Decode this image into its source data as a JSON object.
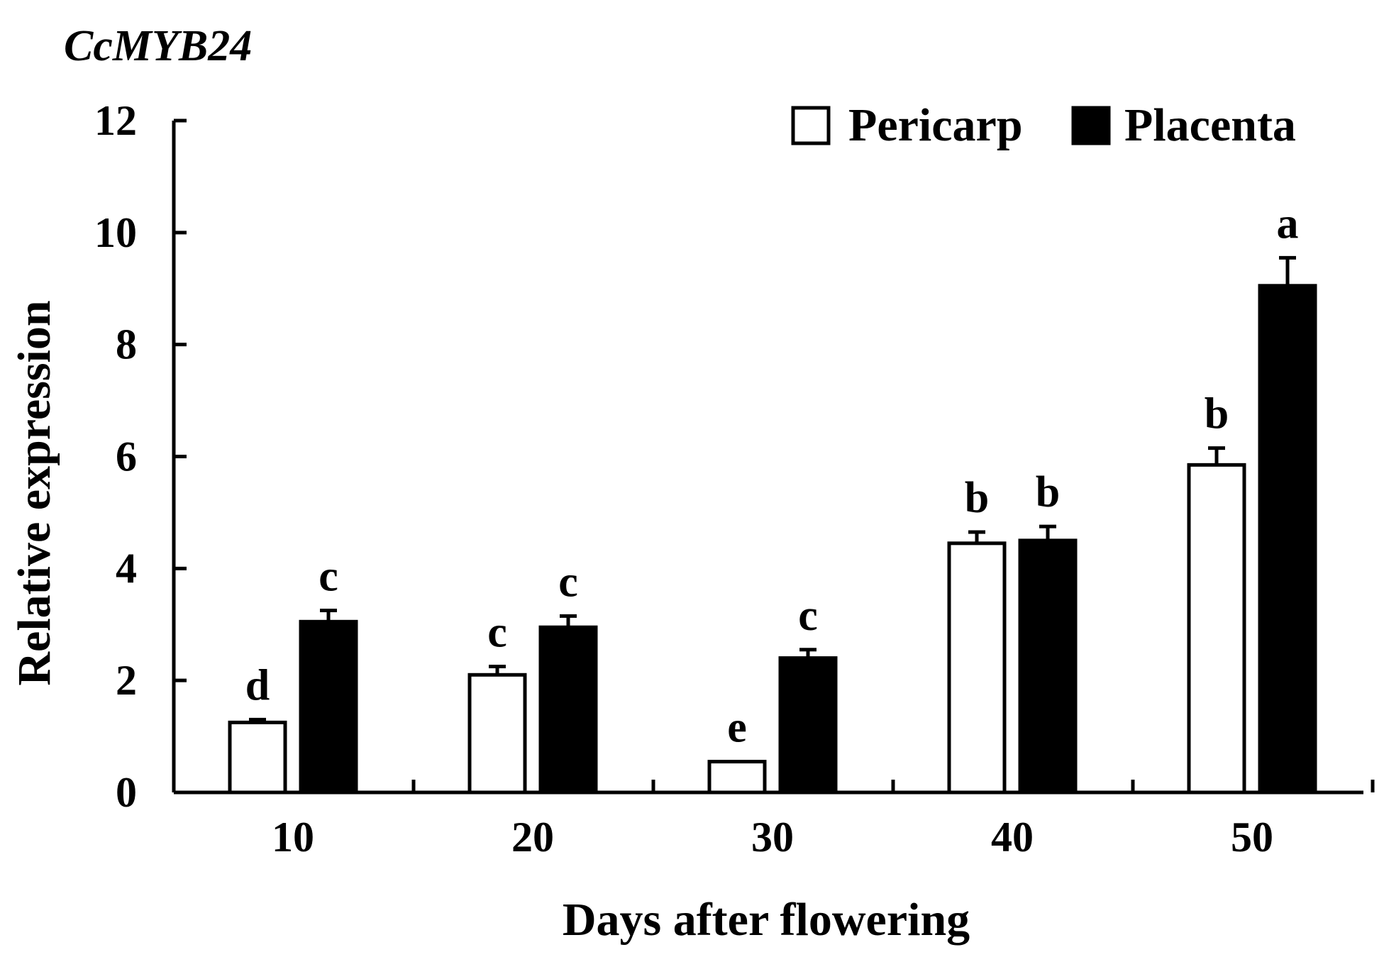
{
  "chart_data": {
    "type": "bar",
    "title": "CcMYB24",
    "xlabel": "Days after flowering",
    "ylabel": "Relative expression",
    "ylim": [
      0,
      12
    ],
    "yticks": [
      "0",
      "2",
      "4",
      "6",
      "8",
      "10",
      "12"
    ],
    "categories": [
      "10",
      "20",
      "30",
      "40",
      "50"
    ],
    "series": [
      {
        "name": "Pericarp",
        "fill": "#ffffff",
        "values": [
          1.25,
          2.1,
          0.55,
          4.45,
          5.85
        ],
        "errors": [
          0.05,
          0.15,
          0.0,
          0.2,
          0.3
        ],
        "letters": [
          "d",
          "c",
          "e",
          "b",
          "b"
        ]
      },
      {
        "name": "Placenta",
        "fill": "#000000",
        "values": [
          3.05,
          2.95,
          2.4,
          4.5,
          9.05
        ],
        "errors": [
          0.2,
          0.2,
          0.15,
          0.25,
          0.5
        ],
        "letters": [
          "c",
          "c",
          "c",
          "b",
          "a"
        ]
      }
    ],
    "legend_position": "top-right",
    "grid": false
  }
}
